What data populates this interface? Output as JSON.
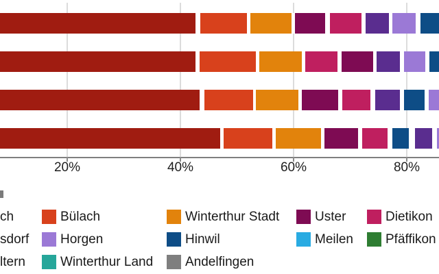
{
  "chart_data": {
    "type": "bar",
    "orientation": "horizontal-stacked",
    "x_axis": {
      "tick_labels": [
        "20%",
        "40%",
        "60%",
        "80%"
      ],
      "tick_values": [
        20,
        40,
        60,
        80
      ],
      "visible_range_pct": [
        8.1,
        85.7
      ],
      "grid": true
    },
    "palette": {
      "dark_red": "#a01c11",
      "red": "#d8411c",
      "orange": "#e2830c",
      "maroon": "#7e0b53",
      "pink": "#bf1f5f",
      "dark_purple": "#5a2d8f",
      "light_purple": "#9b79d6",
      "dark_blue": "#0e4d86",
      "light_blue": "#29abe2",
      "green": "#2e7d32",
      "teal": "#26a69a",
      "gray": "#7f7f7f"
    },
    "rows": [
      {
        "segments": [
          {
            "color": "dark_red",
            "from": 0,
            "to": 42.9
          },
          {
            "color": "red",
            "from": 43.3,
            "to": 52.0
          },
          {
            "color": "orange",
            "from": 52.2,
            "to": 59.8
          },
          {
            "color": "maroon",
            "from": 60.0,
            "to": 65.8
          },
          {
            "color": "pink",
            "from": 66.2,
            "to": 72.2
          },
          {
            "color": "dark_purple",
            "from": 72.5,
            "to": 77.0
          },
          {
            "color": "light_purple",
            "from": 77.3,
            "to": 81.8
          },
          {
            "color": "dark_blue",
            "from": 82.2,
            "to": 87.5
          }
        ]
      },
      {
        "segments": [
          {
            "color": "dark_red",
            "from": 0,
            "to": 42.8
          },
          {
            "color": "red",
            "from": 43.2,
            "to": 53.5
          },
          {
            "color": "orange",
            "from": 53.7,
            "to": 61.6
          },
          {
            "color": "pink",
            "from": 61.9,
            "to": 68.0
          },
          {
            "color": "maroon",
            "from": 68.3,
            "to": 74.2
          },
          {
            "color": "dark_purple",
            "from": 74.5,
            "to": 79.0
          },
          {
            "color": "light_purple",
            "from": 79.3,
            "to": 83.5
          },
          {
            "color": "dark_blue",
            "from": 83.8,
            "to": 87.5
          }
        ]
      },
      {
        "segments": [
          {
            "color": "dark_red",
            "from": 0,
            "to": 43.6
          },
          {
            "color": "red",
            "from": 44.0,
            "to": 53.0
          },
          {
            "color": "orange",
            "from": 53.2,
            "to": 61.0
          },
          {
            "color": "maroon",
            "from": 61.3,
            "to": 68.1
          },
          {
            "color": "pink",
            "from": 68.4,
            "to": 73.8
          },
          {
            "color": "dark_purple",
            "from": 74.2,
            "to": 79.0
          },
          {
            "color": "dark_blue",
            "from": 79.3,
            "to": 83.3
          },
          {
            "color": "light_purple",
            "from": 83.7,
            "to": 87.5
          }
        ]
      },
      {
        "segments": [
          {
            "color": "dark_red",
            "from": 0,
            "to": 47.2
          },
          {
            "color": "red",
            "from": 47.5,
            "to": 56.4
          },
          {
            "color": "orange",
            "from": 56.7,
            "to": 65.0
          },
          {
            "color": "maroon",
            "from": 65.3,
            "to": 71.6
          },
          {
            "color": "pink",
            "from": 71.9,
            "to": 76.8
          },
          {
            "color": "dark_blue",
            "from": 77.3,
            "to": 80.5
          },
          {
            "color": "dark_purple",
            "from": 81.3,
            "to": 84.7
          },
          {
            "color": "light_purple",
            "from": 85.1,
            "to": 87.5
          }
        ]
      }
    ],
    "legend": {
      "rows": [
        [
          {
            "label": "ch",
            "color": null,
            "truncated": true
          },
          {
            "label": "Bülach",
            "color": "red"
          },
          {
            "label": "Winterthur Stadt",
            "color": "orange"
          },
          {
            "label": "Uster",
            "color": "maroon"
          },
          {
            "label": "Dietikon",
            "color": "pink"
          }
        ],
        [
          {
            "label": "sdorf",
            "color": null,
            "truncated": true
          },
          {
            "label": "Horgen",
            "color": "light_purple"
          },
          {
            "label": "Hinwil",
            "color": "dark_blue"
          },
          {
            "label": "Meilen",
            "color": "light_blue"
          },
          {
            "label": "Pfäffikon",
            "color": "green"
          }
        ],
        [
          {
            "label": "ltern",
            "color": null,
            "truncated": true
          },
          {
            "label": "Winterthur Land",
            "color": "teal"
          },
          {
            "label": "Andelfingen",
            "color": "gray"
          }
        ]
      ]
    }
  }
}
